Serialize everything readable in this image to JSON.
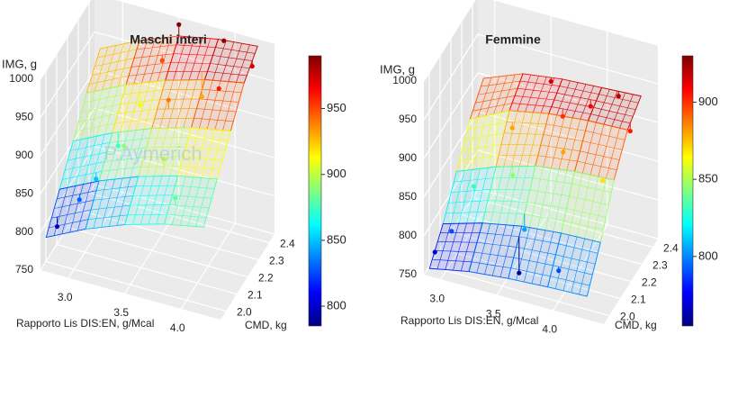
{
  "chart_data": [
    {
      "type": "surface3d",
      "title": "Maschi interi",
      "xlabel": "Rapporto Lis DIS:EN, g/Mcal",
      "ylabel": "CMD, kg",
      "zlabel": "IMG, g",
      "annotation": "P.Aymerich",
      "xlim": [
        2.75,
        4.35
      ],
      "ylim": [
        1.95,
        2.45
      ],
      "zlim": [
        750,
        1000
      ],
      "xticks": [
        {
          "value": 3,
          "label": "3.0"
        },
        3.5,
        {
          "value": 4,
          "label": "4.0"
        }
      ],
      "yticks": [
        {
          "value": 2,
          "label": "2.0"
        },
        2.1,
        2.2,
        2.3,
        2.4
      ],
      "zticks": [
        750,
        800,
        850,
        900,
        950,
        1000
      ],
      "clim": [
        785,
        990
      ],
      "cticks": [
        800,
        850,
        900,
        950
      ],
      "colormap": [
        "#00007f",
        "#0000ff",
        "#0080ff",
        "#00ffff",
        "#80ff80",
        "#ffff00",
        "#ff8000",
        "#ff0000",
        "#7f0000"
      ],
      "surface": {
        "x": [
          2.8,
          3.15,
          3.5,
          3.85,
          4.2
        ],
        "y": [
          1.95,
          2.075,
          2.2,
          2.325,
          2.45
        ],
        "z": [
          [
            795,
            820,
            840,
            855,
            865
          ],
          [
            830,
            855,
            875,
            890,
            900
          ],
          [
            865,
            890,
            910,
            925,
            935
          ],
          [
            900,
            925,
            945,
            960,
            970
          ],
          [
            930,
            955,
            975,
            985,
            990
          ]
        ]
      },
      "points": {
        "x": [
          2.85,
          3.0,
          3.1,
          3.2,
          3.3,
          3.4,
          3.5,
          3.6,
          3.7,
          3.9,
          4.0,
          4.2,
          3.9,
          3.3,
          3.8
        ],
        "y": [
          2.0,
          2.05,
          2.1,
          2.2,
          2.3,
          2.4,
          2.45,
          2.25,
          2.1,
          2.0,
          2.3,
          2.4,
          2.45,
          2.15,
          2.35
        ],
        "z": [
          800,
          830,
          850,
          875,
          910,
          950,
          990,
          940,
          900,
          880,
          960,
          975,
          985,
          890,
          930
        ]
      }
    },
    {
      "type": "surface3d",
      "title": "Femmine",
      "xlabel": "Rapporto Lis DIS:EN, g/Mcal",
      "ylabel": "CMD, kg",
      "zlabel": "IMG, g",
      "xlim": [
        2.85,
        4.45
      ],
      "ylim": [
        1.95,
        2.45
      ],
      "zlim": [
        750,
        1000
      ],
      "xticks": [
        {
          "value": 3,
          "label": "3.0"
        },
        3.5,
        {
          "value": 4,
          "label": "4.0"
        }
      ],
      "yticks": [
        {
          "value": 2,
          "label": "2.0"
        },
        2.1,
        2.2,
        2.3,
        2.4
      ],
      "zticks": [
        750,
        800,
        850,
        900,
        950,
        1000
      ],
      "clim": [
        755,
        930
      ],
      "cticks": [
        800,
        850,
        900
      ],
      "colormap": [
        "#00007f",
        "#0000ff",
        "#0080ff",
        "#00ffff",
        "#80ff80",
        "#ffff00",
        "#ff8000",
        "#ff0000",
        "#7f0000"
      ],
      "surface": {
        "x": [
          2.9,
          3.25,
          3.6,
          3.95,
          4.3
        ],
        "y": [
          1.95,
          2.075,
          2.2,
          2.325,
          2.45
        ],
        "z": [
          [
            760,
            770,
            775,
            778,
            780
          ],
          [
            790,
            805,
            815,
            820,
            822
          ],
          [
            830,
            850,
            865,
            872,
            875
          ],
          [
            870,
            895,
            905,
            910,
            912
          ],
          [
            895,
            915,
            922,
            925,
            928
          ]
        ]
      },
      "points": {
        "x": [
          2.9,
          3.0,
          3.1,
          3.3,
          3.5,
          3.4,
          3.6,
          3.7,
          3.9,
          4.0,
          4.2,
          4.3,
          3.6,
          3.8,
          4.1
        ],
        "y": [
          2.0,
          2.05,
          2.15,
          2.3,
          2.45,
          2.2,
          2.1,
          2.35,
          2.4,
          2.0,
          2.2,
          2.35,
          2.05,
          2.25,
          2.45
        ],
        "z": [
          770,
          790,
          830,
          880,
          915,
          845,
          805,
          900,
          910,
          790,
          870,
          905,
          760,
          880,
          920
        ]
      }
    }
  ]
}
